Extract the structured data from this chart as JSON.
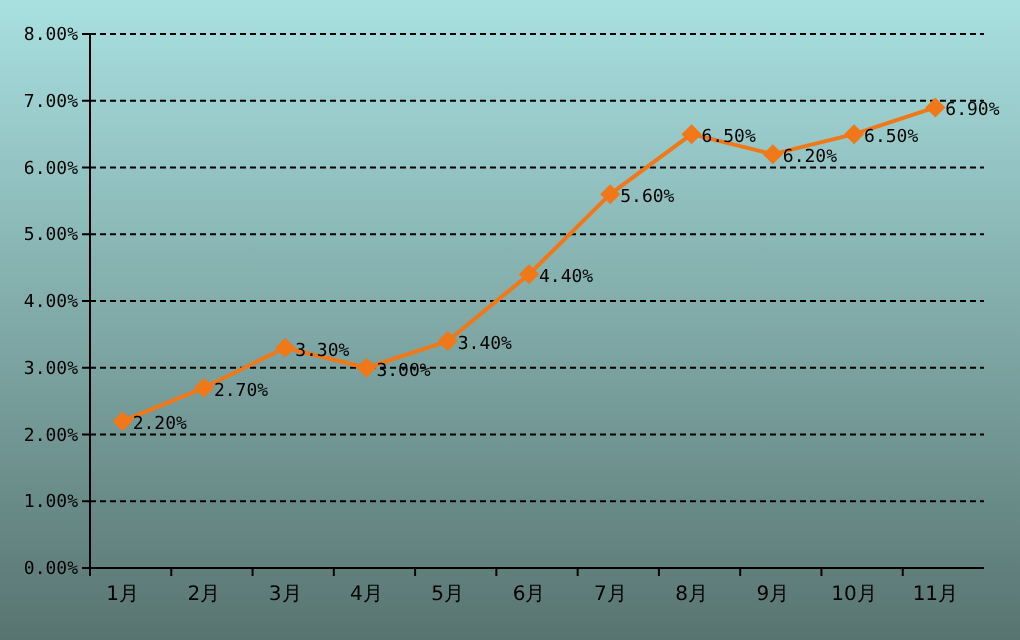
{
  "chart_data": {
    "type": "line",
    "categories": [
      "1月",
      "2月",
      "3月",
      "4月",
      "5月",
      "6月",
      "7月",
      "8月",
      "9月",
      "10月",
      "11月"
    ],
    "series": [
      {
        "color": "#f07818",
        "values": [
          2.2,
          2.7,
          3.3,
          3.0,
          3.4,
          4.4,
          5.6,
          6.5,
          6.2,
          6.5,
          6.9
        ],
        "value_labels": [
          "2.20%",
          "2.70%",
          "3.30%",
          "3.00%",
          "3.40%",
          "4.40%",
          "5.60%",
          "6.50%",
          "6.20%",
          "6.50%",
          "6.90%"
        ]
      }
    ],
    "ylim": [
      0,
      8
    ],
    "yticks": [
      {
        "value": 0,
        "label": "0.00%"
      },
      {
        "value": 1,
        "label": "1.00%"
      },
      {
        "value": 2,
        "label": "2.00%"
      },
      {
        "value": 3,
        "label": "3.00%"
      },
      {
        "value": 4,
        "label": "4.00%"
      },
      {
        "value": 5,
        "label": "5.00%"
      },
      {
        "value": 6,
        "label": "6.00%"
      },
      {
        "value": 7,
        "label": "7.00%"
      },
      {
        "value": 8,
        "label": "8.00%"
      }
    ],
    "grid": "y",
    "marker": "diamond",
    "line_style": "solid"
  }
}
